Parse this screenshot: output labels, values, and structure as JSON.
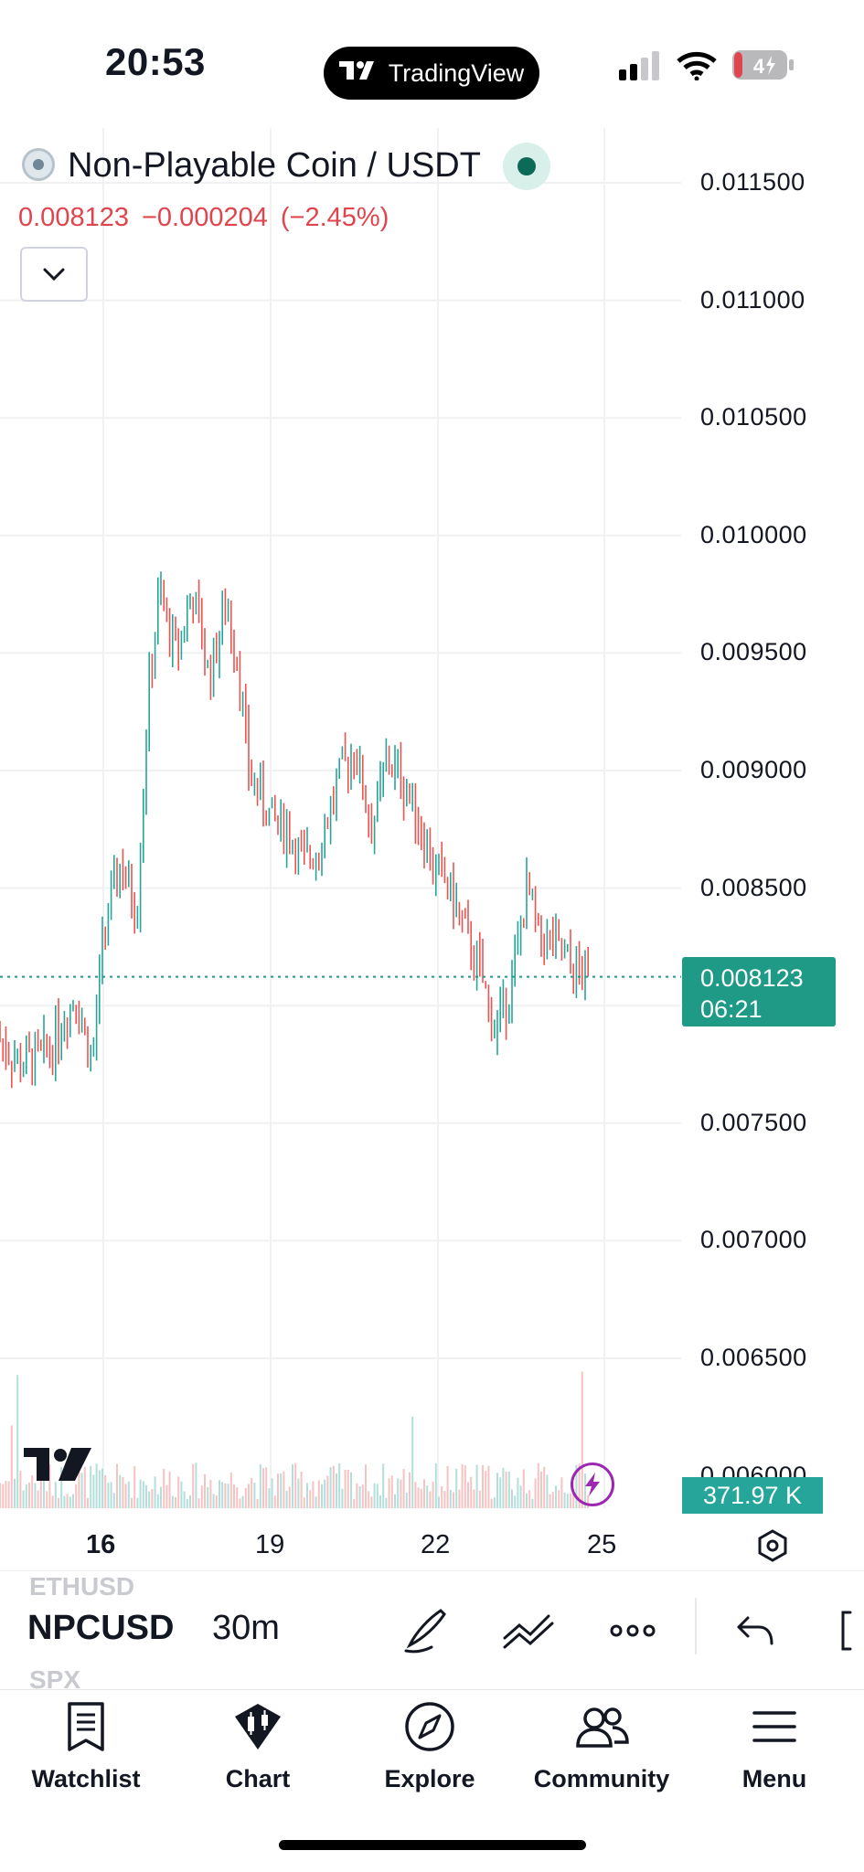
{
  "status_bar": {
    "time": "20:53",
    "app_pill": "TradingView",
    "battery": "4"
  },
  "header": {
    "symbol_title": "Non-Playable Coin / USDT",
    "last_price": "0.008123",
    "change": "−0.000204",
    "change_pct": "(−2.45%)"
  },
  "price_axis": [
    "0.011500",
    "0.011000",
    "0.010500",
    "0.010000",
    "0.009500",
    "0.009000",
    "0.008500",
    "0.007500",
    "0.007000",
    "0.006500",
    "0.006000"
  ],
  "last_price_tag": {
    "price": "0.008123",
    "countdown": "06:21"
  },
  "volume_tag": "371.97 K",
  "date_axis": [
    "16",
    "19",
    "22",
    "25"
  ],
  "symbol_row": {
    "prev_symbol": "ETHUSD",
    "symbol": "NPCUSD",
    "next_symbol": "SPX",
    "interval": "30m"
  },
  "bottom_nav": [
    {
      "label": "Watchlist",
      "icon": "watchlist-icon"
    },
    {
      "label": "Chart",
      "icon": "chart-icon"
    },
    {
      "label": "Explore",
      "icon": "compass-icon"
    },
    {
      "label": "Community",
      "icon": "community-icon"
    },
    {
      "label": "Menu",
      "icon": "menu-icon"
    }
  ],
  "colors": {
    "up": "#26a69a",
    "down": "#ef5350",
    "price_red": "#e0454d",
    "tag": "#1e9a86",
    "flash": "#9c27b0"
  },
  "chart_data": {
    "type": "candlestick",
    "symbol": "NPCUSD",
    "interval": "30m",
    "ylim": [
      0.0058,
      0.0118
    ],
    "last": 0.008123,
    "close_path": [
      [
        "14",
        0.0079
      ],
      [
        "14.5",
        0.00775
      ],
      [
        "15",
        0.0078
      ],
      [
        "15.5",
        0.00805
      ],
      [
        "15.8",
        0.00775
      ],
      [
        "16",
        0.0083
      ],
      [
        "16.3",
        0.0086
      ],
      [
        "16.6",
        0.0084
      ],
      [
        "16.8",
        0.0093
      ],
      [
        "17",
        0.00975
      ],
      [
        "17.3",
        0.0095
      ],
      [
        "17.6",
        0.00975
      ],
      [
        "17.9",
        0.0094
      ],
      [
        "18.2",
        0.0097
      ],
      [
        "18.4",
        0.0095
      ],
      [
        "18.6",
        0.009
      ],
      [
        "19",
        0.0088
      ],
      [
        "19.3",
        0.00875
      ],
      [
        "19.6",
        0.0086
      ],
      [
        "19.9",
        0.0087
      ],
      [
        "20.2",
        0.00895
      ],
      [
        "20.5",
        0.0091
      ],
      [
        "20.8",
        0.00875
      ],
      [
        "21.1",
        0.00905
      ],
      [
        "21.5",
        0.0089
      ],
      [
        "21.9",
        0.0086
      ],
      [
        "22.2",
        0.0085
      ],
      [
        "22.5",
        0.0083
      ],
      [
        "22.8",
        0.0081
      ],
      [
        "23",
        0.0079
      ],
      [
        "23.2",
        0.008
      ],
      [
        "23.4",
        0.0082
      ],
      [
        "23.6",
        0.0085
      ],
      [
        "23.8",
        0.0083
      ],
      [
        "24.1",
        0.00825
      ],
      [
        "24.4",
        0.00815
      ],
      [
        "24.7",
        0.00812
      ]
    ]
  }
}
